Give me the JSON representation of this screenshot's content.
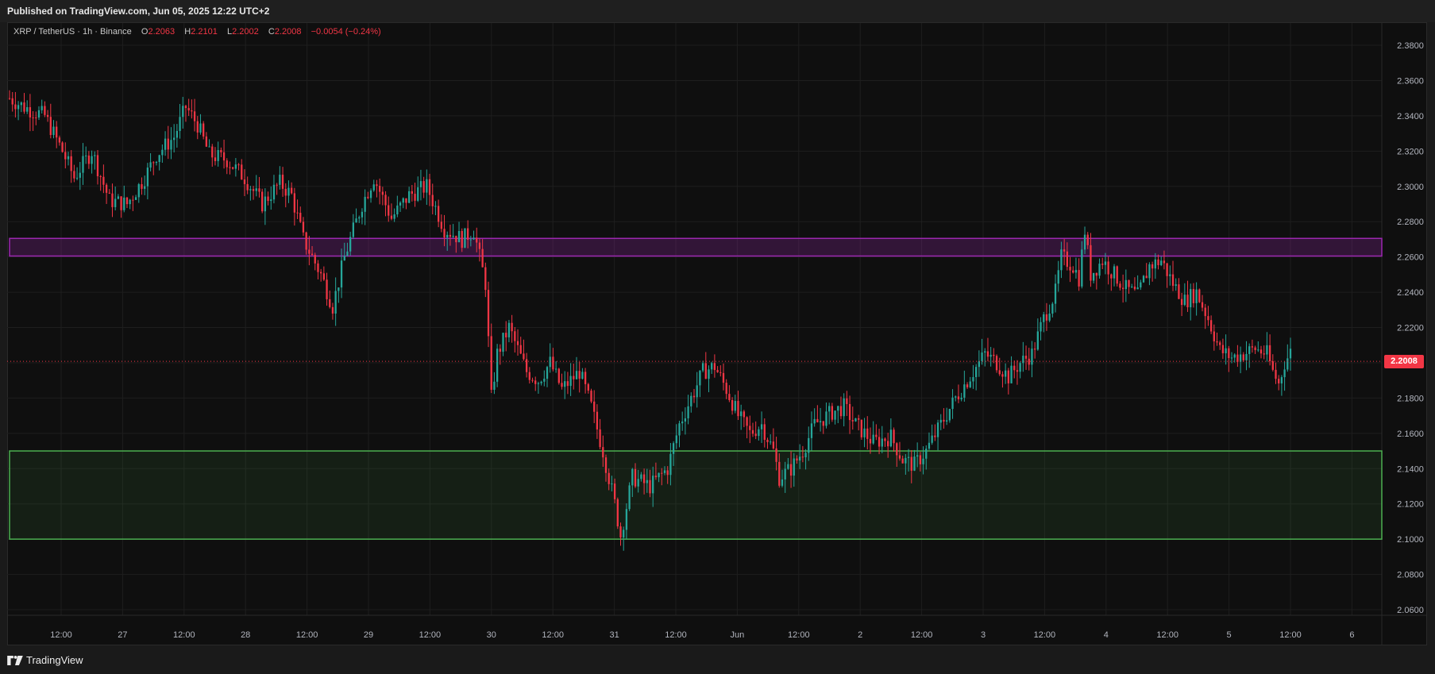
{
  "header": {
    "published": "Published on TradingView.com, Jun 05, 2025 12:22 UTC+2"
  },
  "legend": {
    "symbol": "XRP / TetherUS · 1h · Binance",
    "o_label": "O",
    "o_value": "2.2063",
    "h_label": "H",
    "h_value": "2.2101",
    "l_label": "L",
    "l_value": "2.2002",
    "c_label": "C",
    "c_value": "2.2008",
    "change": "−0.0054 (−0.24%)"
  },
  "footer": {
    "brand": "TradingView"
  },
  "colors": {
    "up": "#26a69a",
    "down": "#f23645",
    "resistance_zone": "#9c27b0",
    "support_zone": "#4caf50",
    "background": "#0f0f0f",
    "grid": "#1e1e1e"
  },
  "chart_data": {
    "type": "candlestick",
    "interval": "1h",
    "ylim": [
      2.05,
      2.39
    ],
    "y_ticks": [
      "2.3800",
      "2.3600",
      "2.3400",
      "2.3200",
      "2.3000",
      "2.2800",
      "2.2600",
      "2.2400",
      "2.2200",
      "2.2000",
      "2.1800",
      "2.1600",
      "2.1400",
      "2.1200",
      "2.1000",
      "2.0800",
      "2.0600"
    ],
    "x_ticks": [
      "12:00",
      "27",
      "12:00",
      "28",
      "12:00",
      "29",
      "12:00",
      "30",
      "12:00",
      "31",
      "12:00",
      "Jun",
      "12:00",
      "2",
      "12:00",
      "3",
      "12:00",
      "4",
      "12:00",
      "5",
      "12:00",
      "6"
    ],
    "last_price": "2.2008",
    "zones": [
      {
        "name": "resistance",
        "top": 2.2705,
        "bottom": 2.2605
      },
      {
        "name": "support",
        "top": 2.15,
        "bottom": 2.1
      }
    ],
    "keypoints": [
      [
        0,
        2.35
      ],
      [
        5,
        2.345
      ],
      [
        12,
        2.34
      ],
      [
        18,
        2.32
      ],
      [
        22,
        2.305
      ],
      [
        28,
        2.32
      ],
      [
        34,
        2.292
      ],
      [
        40,
        2.29
      ],
      [
        46,
        2.305
      ],
      [
        50,
        2.318
      ],
      [
        56,
        2.328
      ],
      [
        60,
        2.345
      ],
      [
        64,
        2.335
      ],
      [
        68,
        2.318
      ],
      [
        74,
        2.315
      ],
      [
        80,
        2.305
      ],
      [
        86,
        2.29
      ],
      [
        92,
        2.302
      ],
      [
        96,
        2.295
      ],
      [
        100,
        2.27
      ],
      [
        106,
        2.25
      ],
      [
        110,
        2.232
      ],
      [
        114,
        2.26
      ],
      [
        120,
        2.29
      ],
      [
        124,
        2.305
      ],
      [
        130,
        2.282
      ],
      [
        136,
        2.295
      ],
      [
        142,
        2.3
      ],
      [
        148,
        2.276
      ],
      [
        154,
        2.27
      ],
      [
        158,
        2.275
      ],
      [
        162,
        2.245
      ],
      [
        164,
        2.18
      ],
      [
        166,
        2.205
      ],
      [
        170,
        2.22
      ],
      [
        176,
        2.195
      ],
      [
        180,
        2.19
      ],
      [
        184,
        2.2
      ],
      [
        188,
        2.185
      ],
      [
        194,
        2.195
      ],
      [
        198,
        2.175
      ],
      [
        202,
        2.15
      ],
      [
        206,
        2.12
      ],
      [
        208,
        2.102
      ],
      [
        212,
        2.135
      ],
      [
        218,
        2.13
      ],
      [
        224,
        2.14
      ],
      [
        228,
        2.165
      ],
      [
        232,
        2.18
      ],
      [
        236,
        2.195
      ],
      [
        240,
        2.198
      ],
      [
        244,
        2.185
      ],
      [
        248,
        2.17
      ],
      [
        252,
        2.16
      ],
      [
        256,
        2.165
      ],
      [
        260,
        2.15
      ],
      [
        262,
        2.135
      ],
      [
        266,
        2.14
      ],
      [
        270,
        2.15
      ],
      [
        274,
        2.165
      ],
      [
        280,
        2.172
      ],
      [
        284,
        2.175
      ],
      [
        288,
        2.165
      ],
      [
        294,
        2.155
      ],
      [
        300,
        2.158
      ],
      [
        304,
        2.145
      ],
      [
        308,
        2.142
      ],
      [
        312,
        2.15
      ],
      [
        316,
        2.162
      ],
      [
        322,
        2.18
      ],
      [
        328,
        2.195
      ],
      [
        332,
        2.205
      ],
      [
        336,
        2.2
      ],
      [
        340,
        2.192
      ],
      [
        344,
        2.2
      ],
      [
        348,
        2.205
      ],
      [
        352,
        2.225
      ],
      [
        356,
        2.24
      ],
      [
        358,
        2.26
      ],
      [
        362,
        2.255
      ],
      [
        364,
        2.248
      ],
      [
        366,
        2.275
      ],
      [
        368,
        2.25
      ],
      [
        372,
        2.258
      ],
      [
        376,
        2.25
      ],
      [
        380,
        2.242
      ],
      [
        384,
        2.238
      ],
      [
        388,
        2.255
      ],
      [
        392,
        2.258
      ],
      [
        396,
        2.245
      ],
      [
        400,
        2.235
      ],
      [
        404,
        2.24
      ],
      [
        408,
        2.225
      ],
      [
        412,
        2.207
      ],
      [
        416,
        2.203
      ],
      [
        420,
        2.205
      ],
      [
        424,
        2.208
      ],
      [
        428,
        2.205
      ],
      [
        430,
        2.195
      ],
      [
        432,
        2.188
      ],
      [
        434,
        2.2
      ],
      [
        436,
        2.206
      ]
    ]
  }
}
